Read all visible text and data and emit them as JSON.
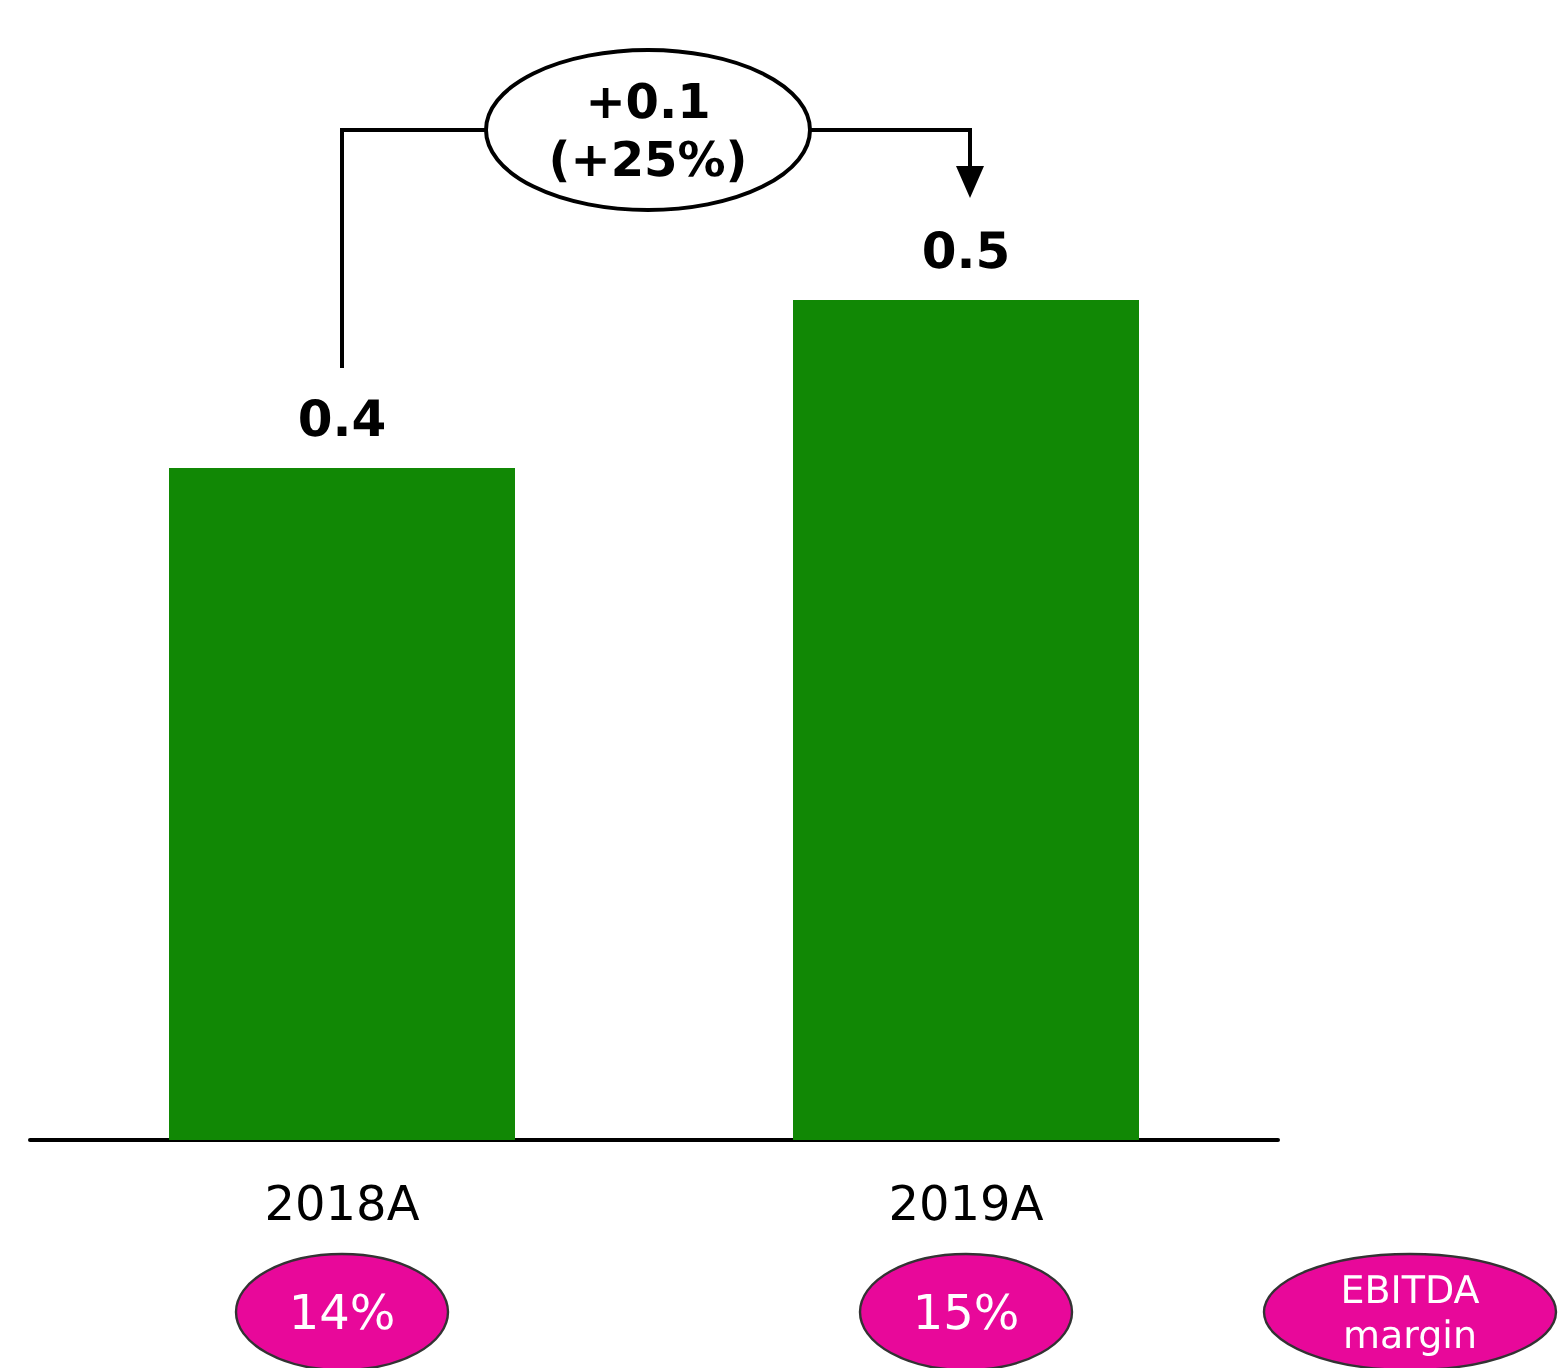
{
  "chart_data": {
    "type": "bar",
    "categories": [
      "2018A",
      "2019A"
    ],
    "values": [
      0.4,
      0.5
    ],
    "color": "#118805",
    "data_labels": true,
    "tick_labels": "x",
    "annotations": [
      "+0.1\n(+25%)",
      "EBITDA margin",
      "14%",
      "15%"
    ]
  }
}
